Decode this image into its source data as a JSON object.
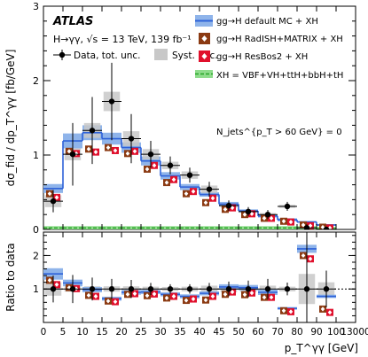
{
  "colors": {
    "mc_fill": "#8fb4ea",
    "mc_line": "#2e62d8",
    "radish": "#8b3a12",
    "resbos": "#e0102c",
    "xh_fill": "#8fdc8c",
    "xh_line": "#27a327",
    "syst": "#c8c8c8"
  },
  "chart_data": {
    "type": "line",
    "atlas_label": "ATLAS",
    "process": "H→γγ, √s = 13 TeV, 139 fb⁻¹",
    "njets_label": "N_jets^{p_T > 60 GeV} = 0",
    "ylabel_top": "dσ_fid / dp_T^γγ [fb/GeV]",
    "ylabel_bottom": "Ratio to data",
    "xlabel": "p_T^γγ [GeV]",
    "legend": {
      "data": "Data, tot. unc.",
      "syst": "Syst. unc.",
      "mc": "gg→H default MC + XH",
      "radish": "gg→H RadISH+MATRIX + XH",
      "resbos": "gg→H ResBos2 + XH",
      "xh": "XH = VBF+VH+ttH+bbH+tH"
    },
    "x_tick_labels": [
      "0",
      "5",
      "10",
      "15",
      "20",
      "25",
      "30",
      "35",
      "40",
      "45",
      "50",
      "60",
      "70",
      "80",
      "90",
      "100",
      "13000"
    ],
    "y_top_ticks": [
      "0",
      "1",
      "2",
      "3"
    ],
    "y_bottom_ticks": [
      "1",
      "2"
    ],
    "bin_edges_labels": [
      "0",
      "5",
      "10",
      "15",
      "20",
      "25",
      "30",
      "35",
      "40",
      "45",
      "50",
      "60",
      "70",
      "80",
      "90",
      "100",
      "13000"
    ],
    "data": {
      "values": [
        0.38,
        1.01,
        1.33,
        1.72,
        1.22,
        1.01,
        0.86,
        0.73,
        0.54,
        0.32,
        0.24,
        0.2,
        0.31,
        0.02,
        0.0
      ],
      "tot_unc": [
        0.15,
        0.42,
        0.45,
        0.52,
        0.33,
        0.18,
        0.12,
        0.1,
        0.1,
        0.07,
        0.06,
        0.06,
        0.06,
        0.05,
        0.02
      ],
      "syst_unc": [
        0.08,
        0.08,
        0.1,
        0.13,
        0.1,
        0.07,
        0.05,
        0.05,
        0.05,
        0.03,
        0.02,
        0.02,
        0.02,
        0.01,
        0.01
      ]
    },
    "default_mc": {
      "values": [
        0.55,
        1.19,
        1.3,
        1.22,
        1.1,
        0.92,
        0.72,
        0.57,
        0.47,
        0.34,
        0.25,
        0.18,
        0.13,
        0.1,
        0.06
      ],
      "unc": [
        0.06,
        0.1,
        0.1,
        0.08,
        0.07,
        0.06,
        0.05,
        0.04,
        0.03,
        0.03,
        0.02,
        0.02,
        0.02,
        0.01,
        0.01
      ]
    },
    "radish": [
      0.48,
      1.05,
      1.08,
      1.1,
      1.02,
      0.81,
      0.63,
      0.48,
      0.36,
      0.27,
      0.2,
      0.15,
      0.11,
      0.06,
      0.03
    ],
    "resbos": [
      0.43,
      1.02,
      1.04,
      1.06,
      1.05,
      0.86,
      0.67,
      0.51,
      0.42,
      0.29,
      0.21,
      0.15,
      0.1,
      0.05,
      0.02
    ],
    "xh": [
      0.02,
      0.02,
      0.02,
      0.02,
      0.02,
      0.02,
      0.02,
      0.02,
      0.02,
      0.02,
      0.02,
      0.02,
      0.02,
      0.02,
      0.01
    ],
    "ratio": {
      "data_unc": [
        0.4,
        0.42,
        0.34,
        0.3,
        0.27,
        0.18,
        0.14,
        0.14,
        0.18,
        0.22,
        0.25,
        0.3,
        0.19,
        2.1,
        0.55
      ],
      "syst_unc": [
        0.2,
        0.08,
        0.08,
        0.08,
        0.08,
        0.07,
        0.06,
        0.07,
        0.1,
        0.1,
        0.1,
        0.1,
        0.07,
        0.45,
        0.2
      ],
      "mc": [
        1.45,
        1.18,
        0.98,
        0.71,
        0.9,
        0.91,
        0.84,
        0.78,
        0.87,
        1.06,
        1.04,
        0.9,
        0.42,
        2.2,
        0.78
      ],
      "mc_unc": [
        0.17,
        0.1,
        0.08,
        0.06,
        0.07,
        0.06,
        0.06,
        0.06,
        0.06,
        0.08,
        0.08,
        0.08,
        0.04,
        0.12,
        0.05
      ],
      "radish": [
        1.26,
        1.04,
        0.81,
        0.64,
        0.84,
        0.8,
        0.73,
        0.66,
        0.67,
        0.84,
        0.83,
        0.75,
        0.35,
        2.0,
        0.4
      ],
      "resbos": [
        1.13,
        1.01,
        0.78,
        0.62,
        0.86,
        0.85,
        0.78,
        0.7,
        0.78,
        0.91,
        0.88,
        0.75,
        0.32,
        1.9,
        0.3
      ]
    },
    "ylim_top": [
      0,
      3
    ],
    "ylim_bottom": [
      0,
      2.7
    ]
  }
}
